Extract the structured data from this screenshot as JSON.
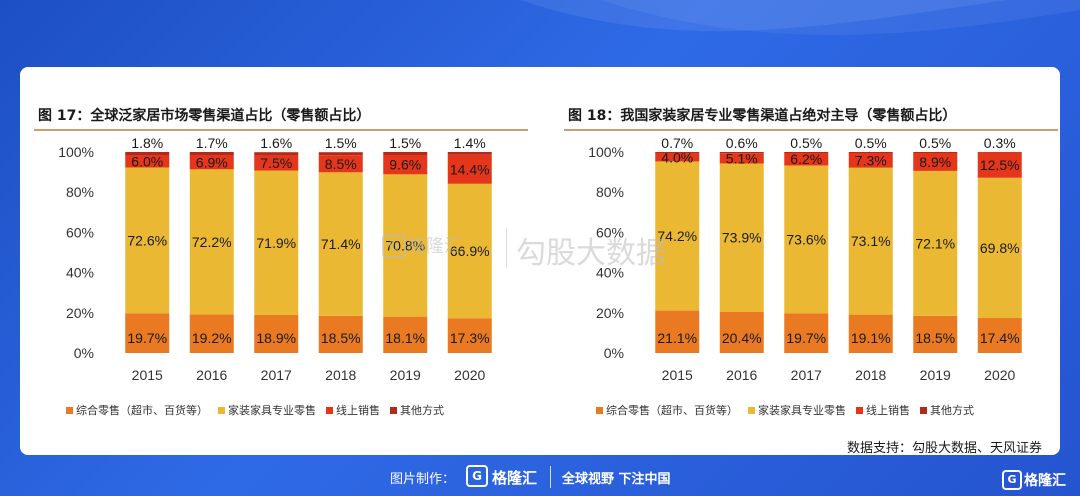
{
  "colors": {
    "background": "#2a5fdc",
    "series": [
      "#e97a22",
      "#eab833",
      "#e5361c",
      "#b22a1a"
    ],
    "rule": "#c9a074"
  },
  "chart_data": [
    {
      "type": "bar",
      "stacked": true,
      "title": "图 17：全球泛家居市场零售渠道占比（零售额占比）",
      "categories": [
        "2015",
        "2016",
        "2017",
        "2018",
        "2019",
        "2020"
      ],
      "ylim": [
        0,
        100
      ],
      "yticks": [
        "0%",
        "20%",
        "40%",
        "60%",
        "80%",
        "100%"
      ],
      "series": [
        {
          "name": "综合零售（超市、百货等）",
          "values": [
            19.7,
            19.2,
            18.9,
            18.5,
            18.1,
            17.3
          ],
          "labels": [
            "19.7%",
            "19.2%",
            "18.9%",
            "18.5%",
            "18.1%",
            "17.3%"
          ]
        },
        {
          "name": "家装家具专业零售",
          "values": [
            72.6,
            72.2,
            71.9,
            71.4,
            70.8,
            66.9
          ],
          "labels": [
            "72.6%",
            "72.2%",
            "71.9%",
            "71.4%",
            "70.8%",
            "66.9%"
          ]
        },
        {
          "name": "线上销售",
          "values": [
            6.0,
            6.9,
            7.5,
            8.5,
            9.6,
            14.4
          ],
          "labels": [
            "6.0%",
            "6.9%",
            "7.5%",
            "8.5%",
            "9.6%",
            "14.4%"
          ]
        },
        {
          "name": "其他方式",
          "values": [
            1.8,
            1.7,
            1.6,
            1.5,
            1.5,
            1.4
          ],
          "labels": [
            "1.8%",
            "1.7%",
            "1.6%",
            "1.5%",
            "1.5%",
            "1.4%"
          ]
        }
      ]
    },
    {
      "type": "bar",
      "stacked": true,
      "title": "图 18：我国家装家居专业零售渠道占绝对主导（零售额占比）",
      "categories": [
        "2015",
        "2016",
        "2017",
        "2018",
        "2019",
        "2020"
      ],
      "ylim": [
        0,
        100
      ],
      "yticks": [
        "0%",
        "20%",
        "40%",
        "60%",
        "80%",
        "100%"
      ],
      "series": [
        {
          "name": "综合零售（超市、百货等）",
          "values": [
            21.1,
            20.4,
            19.7,
            19.1,
            18.5,
            17.4
          ],
          "labels": [
            "21.1%",
            "20.4%",
            "19.7%",
            "19.1%",
            "18.5%",
            "17.4%"
          ]
        },
        {
          "name": "家装家具专业零售",
          "values": [
            74.2,
            73.9,
            73.6,
            73.1,
            72.1,
            69.8
          ],
          "labels": [
            "74.2%",
            "73.9%",
            "73.6%",
            "73.1%",
            "72.1%",
            "69.8%"
          ]
        },
        {
          "name": "线上销售",
          "values": [
            4.0,
            5.1,
            6.2,
            7.3,
            8.9,
            12.5
          ],
          "labels": [
            "4.0%",
            "5.1%",
            "6.2%",
            "7.3%",
            "8.9%",
            "12.5%"
          ]
        },
        {
          "name": "其他方式",
          "values": [
            0.7,
            0.6,
            0.5,
            0.5,
            0.5,
            0.3
          ],
          "labels": [
            "0.7%",
            "0.6%",
            "0.5%",
            "0.5%",
            "0.5%",
            "0.3%"
          ]
        }
      ]
    }
  ],
  "legend": [
    "综合零售（超市、百货等）",
    "家装家具专业零售",
    "线上销售",
    "其他方式"
  ],
  "source": "数据支持：勾股大数据、天风证券",
  "watermark": {
    "logo": "G",
    "brand": "格隆汇",
    "text": "勾股大数据"
  },
  "footer": {
    "made_by": "图片制作：",
    "logo": "G",
    "brand": "格隆汇",
    "slogan": "全球视野 下注中国",
    "corner_logo": "G",
    "corner_brand": "格隆汇"
  }
}
